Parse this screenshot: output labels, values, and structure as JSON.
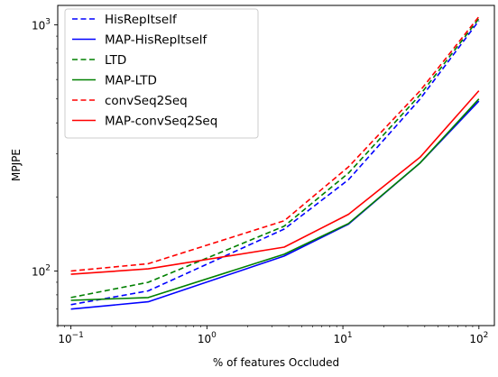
{
  "chart_data": {
    "type": "line",
    "title": "",
    "xlabel": "% of features Occluded",
    "ylabel": "MPJPE",
    "xscale": "log",
    "yscale": "log",
    "xlim": [
      0.08,
      130
    ],
    "ylim": [
      60,
      1200
    ],
    "grid": false,
    "legend_position": "top-left",
    "x": [
      0.1,
      0.37,
      3.7,
      11,
      37,
      100
    ],
    "xticks": [
      {
        "value": 0.1,
        "base": "10",
        "exp": "−1"
      },
      {
        "value": 1,
        "base": "10",
        "exp": "0"
      },
      {
        "value": 10,
        "base": "10",
        "exp": "1"
      },
      {
        "value": 100,
        "base": "10",
        "exp": "2"
      }
    ],
    "yticks": [
      {
        "value": 100,
        "base": "10",
        "exp": "2"
      },
      {
        "value": 1000,
        "base": "10",
        "exp": "3"
      }
    ],
    "series": [
      {
        "name": "HisRepItself",
        "color": "#0000ff",
        "dash": true,
        "values": [
          73,
          83,
          148,
          235,
          500,
          1040
        ]
      },
      {
        "name": "MAP-HisRepItself",
        "color": "#0000ff",
        "dash": false,
        "values": [
          70,
          75,
          115,
          155,
          275,
          490
        ]
      },
      {
        "name": "LTD",
        "color": "#008000",
        "dash": true,
        "values": [
          78,
          90,
          152,
          250,
          520,
          1060
        ]
      },
      {
        "name": "MAP-LTD",
        "color": "#008000",
        "dash": false,
        "values": [
          76,
          78,
          117,
          156,
          275,
          500
        ]
      },
      {
        "name": "convSeq2Seq",
        "color": "#ff0000",
        "dash": true,
        "values": [
          100,
          107,
          160,
          265,
          540,
          1080
        ]
      },
      {
        "name": "MAP-convSeq2Seq",
        "color": "#ff0000",
        "dash": false,
        "values": [
          97,
          102,
          125,
          170,
          290,
          540
        ]
      }
    ]
  }
}
